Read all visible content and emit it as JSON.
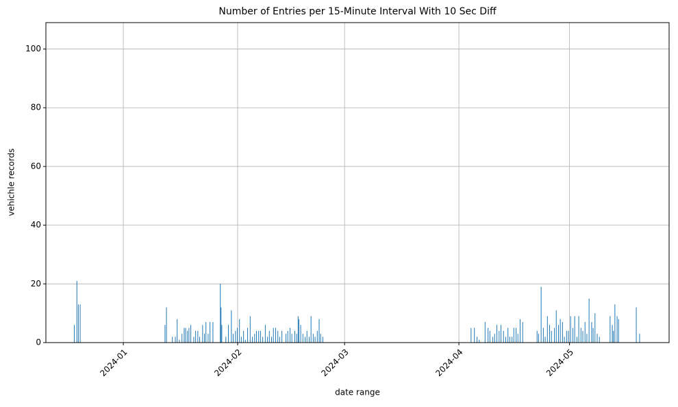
{
  "chart_data": {
    "type": "bar",
    "title": "Number of Entries per 15-Minute Interval With 10 Sec Diff",
    "x_label": "date range",
    "y_label": "vehichle records",
    "color": "#1f77b4",
    "grid": true,
    "xlim": [
      -21,
      148
    ],
    "ylim": [
      0,
      109
    ],
    "xticks": [
      {
        "value": 0,
        "label": "2024-01"
      },
      {
        "value": 31,
        "label": "2024-02"
      },
      {
        "value": 60,
        "label": "2024-03"
      },
      {
        "value": 91,
        "label": "2024-04"
      },
      {
        "value": 121,
        "label": "2024-05"
      }
    ],
    "yticks": [
      0,
      20,
      40,
      60,
      80,
      100
    ],
    "x": [
      -13.3,
      -12.6,
      -12.2,
      -11.7,
      11.3,
      11.7,
      13.3,
      14.1,
      14.6,
      15.2,
      15.9,
      16.5,
      16.9,
      17.4,
      17.8,
      18.3,
      19.1,
      19.6,
      20.2,
      20.7,
      21.5,
      22.0,
      22.4,
      23.0,
      23.5,
      24.3,
      26.3,
      26.5,
      26.7,
      27.8,
      28.5,
      29.3,
      29.8,
      30.4,
      30.9,
      31.5,
      32.0,
      32.6,
      33.1,
      33.7,
      34.4,
      35.0,
      35.6,
      36.1,
      36.7,
      37.2,
      37.8,
      38.5,
      39.1,
      39.6,
      40.2,
      40.7,
      41.3,
      41.9,
      42.4,
      43.0,
      44.1,
      44.6,
      45.2,
      45.7,
      46.5,
      47.0,
      47.4,
      47.6,
      48.1,
      48.7,
      49.3,
      49.8,
      50.4,
      50.9,
      51.5,
      52.0,
      52.6,
      53.1,
      53.5,
      54.1,
      94.3,
      95.2,
      95.9,
      96.5,
      98.1,
      98.9,
      99.4,
      100.2,
      100.7,
      101.3,
      101.9,
      102.4,
      103.1,
      103.7,
      104.3,
      104.8,
      105.4,
      105.9,
      106.5,
      107.0,
      107.6,
      108.3,
      112.2,
      112.6,
      113.3,
      113.9,
      114.4,
      115.0,
      115.6,
      116.1,
      116.9,
      117.4,
      118.0,
      118.5,
      119.1,
      119.6,
      120.2,
      120.7,
      121.3,
      121.9,
      122.4,
      123.0,
      123.5,
      124.1,
      124.6,
      125.2,
      125.7,
      126.3,
      127.0,
      127.4,
      127.9,
      128.5,
      129.1,
      132.0,
      132.6,
      132.9,
      133.3,
      133.9,
      134.3,
      139.1,
      140.0
    ],
    "values": [
      6,
      21,
      13,
      13,
      6,
      12,
      2,
      2,
      8,
      1,
      3,
      5,
      5,
      4,
      5,
      6,
      2,
      4,
      4,
      2,
      6,
      3,
      7,
      3,
      7,
      7,
      20,
      12,
      6,
      2,
      6,
      11,
      3,
      4,
      5,
      8,
      2,
      4,
      1,
      5,
      9,
      2,
      3,
      4,
      4,
      4,
      2,
      6,
      2,
      4,
      2,
      5,
      5,
      4,
      2,
      4,
      3,
      4,
      5,
      3,
      4,
      3,
      9,
      8,
      6,
      3,
      2,
      4,
      2,
      9,
      3,
      2,
      4,
      8,
      3,
      2,
      5,
      5,
      2,
      1,
      7,
      5,
      4,
      2,
      3,
      6,
      4,
      6,
      4,
      2,
      5,
      2,
      2,
      5,
      5,
      3,
      8,
      7,
      4,
      3,
      19,
      5,
      2,
      9,
      6,
      4,
      5,
      11,
      6,
      8,
      7,
      2,
      4,
      4,
      9,
      5,
      9,
      2,
      9,
      5,
      4,
      7,
      3,
      15,
      7,
      5,
      10,
      3,
      2,
      9,
      6,
      4,
      13,
      9,
      8,
      12,
      3
    ]
  }
}
